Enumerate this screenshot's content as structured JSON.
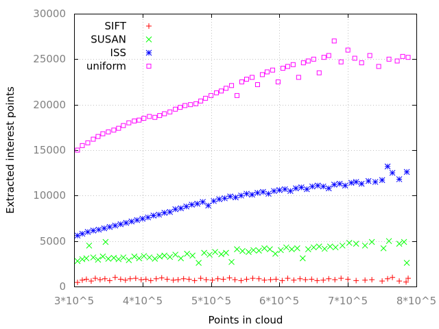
{
  "chart_data": {
    "type": "scatter",
    "title": "",
    "xlabel": "Points in cloud",
    "ylabel": "Extracted interest points",
    "xlim": [
      300000,
      800000
    ],
    "ylim": [
      0,
      30000
    ],
    "xticks": [
      {
        "value": 300000,
        "label": "3*10^5"
      },
      {
        "value": 400000,
        "label": "4*10^5"
      },
      {
        "value": 500000,
        "label": "5*10^5"
      },
      {
        "value": 600000,
        "label": "6*10^5"
      },
      {
        "value": 700000,
        "label": "7*10^5"
      },
      {
        "value": 800000,
        "label": "8*10^5"
      }
    ],
    "yticks": [
      {
        "value": 0,
        "label": "0"
      },
      {
        "value": 5000,
        "label": "5000"
      },
      {
        "value": 10000,
        "label": "10000"
      },
      {
        "value": 15000,
        "label": "15000"
      },
      {
        "value": 20000,
        "label": "20000"
      },
      {
        "value": 25000,
        "label": "25000"
      },
      {
        "value": 30000,
        "label": "30000"
      }
    ],
    "grid": true,
    "legend": "top-left",
    "series": [
      {
        "name": "SIFT",
        "marker": "plus",
        "color": "#ff0000",
        "x": [
          305000,
          312000,
          318000,
          325000,
          331000,
          338000,
          345000,
          352000,
          360000,
          368000,
          375000,
          382000,
          390000,
          398000,
          405000,
          412000,
          420000,
          428000,
          436000,
          445000,
          452000,
          460000,
          468000,
          476000,
          485000,
          493000,
          502000,
          510000,
          518000,
          527000,
          535000,
          544000,
          552000,
          561000,
          570000,
          578000,
          587000,
          595000,
          604000,
          612000,
          621000,
          630000,
          638000,
          647000,
          655000,
          664000,
          672000,
          681000,
          690000,
          700000,
          712000,
          725000,
          735000,
          750000,
          758000,
          765000,
          775000,
          785000,
          788000
        ],
        "y": [
          450,
          700,
          800,
          600,
          900,
          750,
          850,
          650,
          1000,
          800,
          700,
          850,
          900,
          750,
          800,
          650,
          850,
          950,
          800,
          700,
          750,
          850,
          800,
          650,
          900,
          750,
          700,
          850,
          800,
          950,
          750,
          650,
          800,
          900,
          850,
          700,
          750,
          800,
          650,
          900,
          700,
          850,
          750,
          800,
          650,
          700,
          850,
          750,
          900,
          800,
          650,
          700,
          750,
          600,
          850,
          1000,
          600,
          500,
          900
        ]
      },
      {
        "name": "SUSAN",
        "marker": "cross",
        "color": "#00ff00",
        "x": [
          305000,
          312000,
          318000,
          322000,
          328000,
          335000,
          342000,
          346000,
          350000,
          358000,
          365000,
          372000,
          380000,
          388000,
          395000,
          402000,
          410000,
          418000,
          425000,
          432000,
          440000,
          448000,
          456000,
          465000,
          473000,
          482000,
          490000,
          498000,
          506000,
          515000,
          522000,
          530000,
          538000,
          546000,
          555000,
          562000,
          570000,
          578000,
          586000,
          594000,
          602000,
          610000,
          618000,
          626000,
          634000,
          642000,
          650000,
          658000,
          666000,
          674000,
          682000,
          692000,
          702000,
          712000,
          725000,
          735000,
          752000,
          760000,
          775000,
          782000,
          786000
        ],
        "y": [
          2800,
          3000,
          3100,
          4500,
          3200,
          2950,
          3300,
          4900,
          3050,
          3150,
          3000,
          3200,
          2900,
          3300,
          3100,
          3350,
          3200,
          3050,
          3300,
          3400,
          3250,
          3500,
          3100,
          3600,
          3400,
          2600,
          3700,
          3500,
          3800,
          3550,
          3700,
          2700,
          4100,
          3900,
          3800,
          4000,
          3950,
          4200,
          4100,
          3600,
          4000,
          4300,
          4100,
          4200,
          3100,
          4100,
          4300,
          4400,
          4150,
          4400,
          4300,
          4500,
          4800,
          4700,
          4500,
          4900,
          4200,
          5000,
          4700,
          4900,
          2600
        ]
      },
      {
        "name": "ISS",
        "marker": "star",
        "color": "#0000ff",
        "x": [
          305000,
          312000,
          320000,
          328000,
          336000,
          344000,
          352000,
          360000,
          368000,
          376000,
          384000,
          392000,
          400000,
          408000,
          416000,
          424000,
          432000,
          440000,
          448000,
          456000,
          464000,
          472000,
          480000,
          488000,
          496000,
          504000,
          512000,
          520000,
          528000,
          536000,
          544000,
          552000,
          560000,
          568000,
          576000,
          584000,
          592000,
          600000,
          608000,
          616000,
          624000,
          632000,
          640000,
          648000,
          656000,
          664000,
          672000,
          680000,
          688000,
          696000,
          705000,
          712000,
          720000,
          730000,
          740000,
          750000,
          758000,
          765000,
          775000,
          786000
        ],
        "y": [
          5600,
          5800,
          6000,
          6150,
          6250,
          6400,
          6550,
          6700,
          6850,
          7000,
          7150,
          7300,
          7450,
          7600,
          7800,
          7900,
          8100,
          8200,
          8500,
          8600,
          8800,
          9000,
          9100,
          9300,
          8900,
          9400,
          9600,
          9700,
          9900,
          9800,
          10000,
          10200,
          10100,
          10300,
          10400,
          10200,
          10500,
          10600,
          10700,
          10500,
          10800,
          10900,
          10700,
          11000,
          11100,
          11000,
          10800,
          11200,
          11300,
          11100,
          11400,
          11500,
          11300,
          11600,
          11500,
          11700,
          13200,
          12500,
          11800,
          12600
        ]
      },
      {
        "name": "uniform",
        "marker": "square",
        "color": "#ff00ff",
        "x": [
          305000,
          312000,
          320000,
          328000,
          335000,
          342000,
          350000,
          358000,
          365000,
          372000,
          380000,
          388000,
          395000,
          402000,
          410000,
          418000,
          425000,
          432000,
          440000,
          448000,
          455000,
          462000,
          470000,
          478000,
          485000,
          492000,
          500000,
          508000,
          515000,
          522000,
          530000,
          538000,
          545000,
          552000,
          560000,
          568000,
          575000,
          582000,
          590000,
          598000,
          605000,
          612000,
          620000,
          628000,
          635000,
          642000,
          650000,
          658000,
          665000,
          672000,
          680000,
          690000,
          700000,
          710000,
          720000,
          732000,
          745000,
          760000,
          772000,
          780000,
          788000
        ],
        "y": [
          15000,
          15500,
          15800,
          16200,
          16500,
          16800,
          17000,
          17200,
          17400,
          17700,
          18000,
          18200,
          18300,
          18500,
          18700,
          18600,
          18800,
          19000,
          19200,
          19500,
          19700,
          19900,
          20000,
          20100,
          20400,
          20700,
          21000,
          21300,
          21500,
          21800,
          22100,
          21000,
          22500,
          22800,
          23000,
          22200,
          23300,
          23600,
          23800,
          22500,
          24000,
          24200,
          24400,
          23000,
          24600,
          24800,
          25000,
          23500,
          25200,
          25400,
          27000,
          24700,
          26000,
          25100,
          24600,
          25400,
          24200,
          25000,
          24800,
          25300,
          25200
        ]
      }
    ]
  }
}
